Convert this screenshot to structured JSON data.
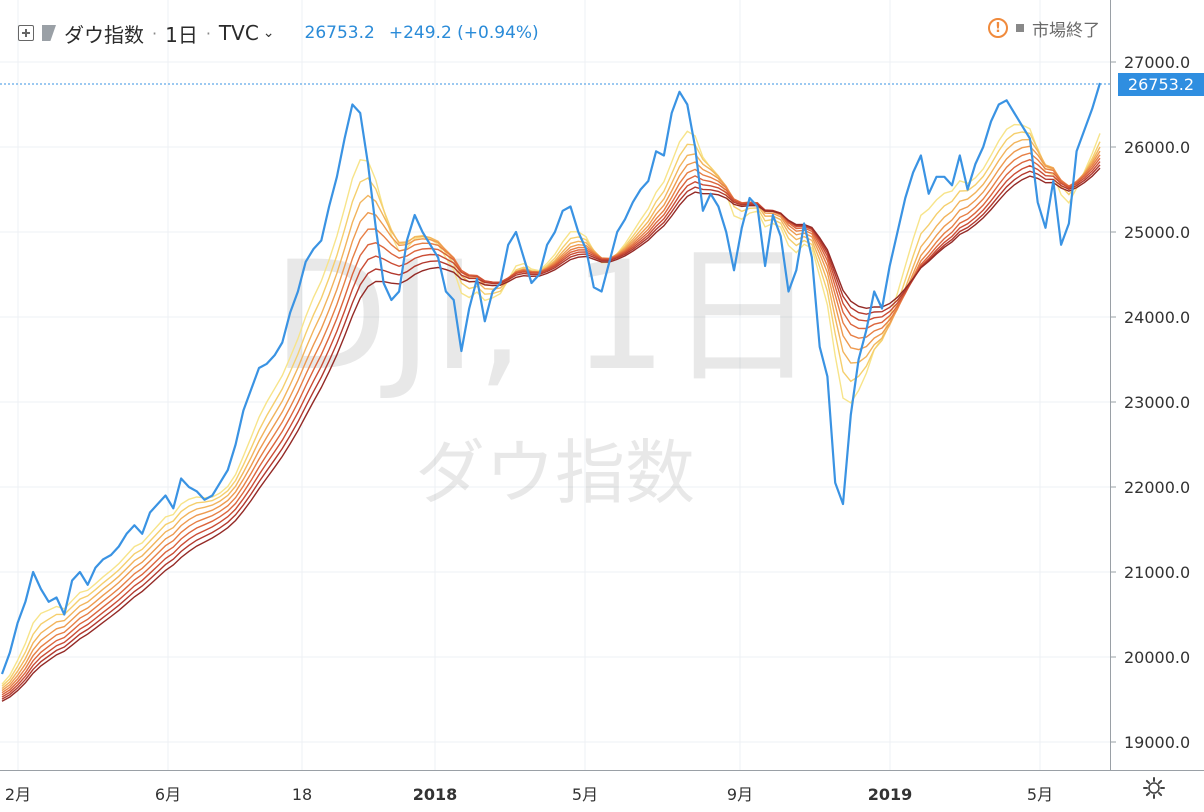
{
  "header": {
    "symbol_name": "ダウ指数",
    "interval": "1日",
    "exchange": "TVC",
    "last_price": "26753.2",
    "change": "+249.2 (+0.94%)"
  },
  "status": {
    "market": "市場終了"
  },
  "price_label": "26753.2",
  "watermark": {
    "line1": "DJI, 1日",
    "line2": "ダウ指数"
  },
  "colors": {
    "price_line": "#3a93e3",
    "ribbon": [
      "#f7e48a",
      "#f5cf6d",
      "#f2b45c",
      "#ee9a4f",
      "#e77f45",
      "#dc653d",
      "#cb4d35",
      "#b3392e",
      "#942a26"
    ]
  },
  "chart_data": {
    "type": "line",
    "title": "ダウ指数",
    "ylim": [
      18600,
      27400
    ],
    "ticks_y": [
      19000,
      20000,
      21000,
      22000,
      23000,
      24000,
      25000,
      26000,
      27000
    ],
    "ytick_labels": [
      "19000.0",
      "20000.0",
      "21000.0",
      "22000.0",
      "23000.0",
      "24000.0",
      "25000.0",
      "26000.0",
      "27000.0"
    ],
    "xtick_labels": [
      "2月",
      "6月",
      "18",
      "2018",
      "5月",
      "9月",
      "2019",
      "5月"
    ],
    "grid": true,
    "legend": "none",
    "series": [
      {
        "values": [
          19800,
          20050,
          20400,
          20650,
          21000,
          20800,
          20650,
          20700,
          20500,
          20900,
          21000,
          20850,
          21050,
          21150,
          21200,
          21300,
          21450,
          21550,
          21450,
          21700,
          21800,
          21900,
          21750,
          22100,
          22000,
          21950,
          21850,
          21900,
          22050,
          22200,
          22500,
          22900,
          23150,
          23400,
          23450,
          23550,
          23700,
          24050,
          24300,
          24650,
          24800,
          24900,
          25300,
          25650,
          26100,
          26500,
          26400,
          25800,
          25050,
          24400,
          24200,
          24300,
          24900,
          25200,
          25000,
          24850,
          24700,
          24300,
          24200,
          23600,
          24100,
          24450,
          23950,
          24300,
          24400,
          24850,
          25000,
          24700,
          24400,
          24500,
          24850,
          25000,
          25250,
          25300,
          25000,
          24800,
          24350,
          24300,
          24650,
          25000,
          25150,
          25350,
          25500,
          25600,
          25950,
          25900,
          26400,
          26650,
          26500,
          26000,
          25250,
          25450,
          25300,
          25000,
          24550,
          25050,
          25400,
          25300,
          24600,
          25200,
          24950,
          24300,
          24550,
          25100,
          24700,
          23650,
          23300,
          22050,
          21800,
          22850,
          23500,
          23850,
          24300,
          24100,
          24600,
          25000,
          25400,
          25700,
          25900,
          25450,
          25650,
          25650,
          25550,
          25900,
          25500,
          25800,
          26000,
          26300,
          26500,
          26550,
          26400,
          26250,
          26100,
          25350,
          25050,
          25600,
          24850,
          25100,
          25950,
          26200,
          26450,
          26753
        ]
      }
    ]
  }
}
